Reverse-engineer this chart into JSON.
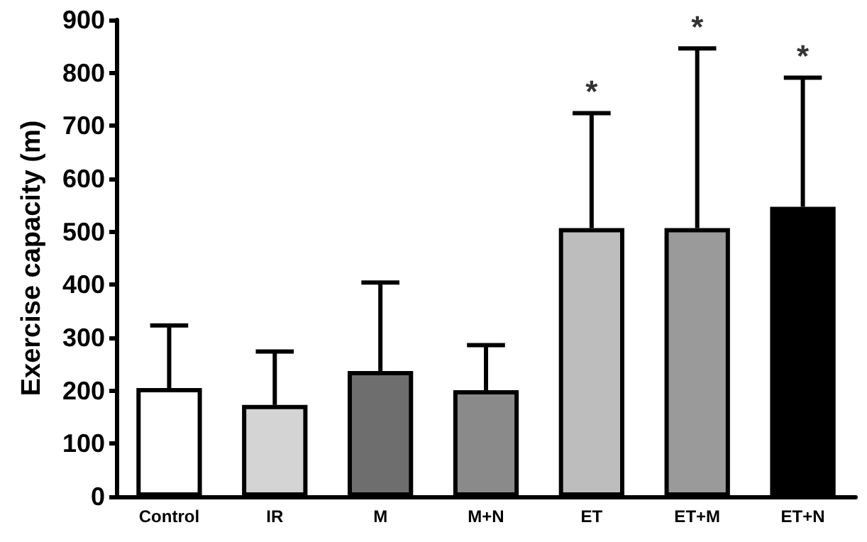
{
  "chart_data": {
    "type": "bar",
    "ylabel": "Exercise capacity (m)",
    "categories": [
      "Control",
      "IR",
      "M",
      "M+N",
      "ET",
      "ET+M",
      "ET+N"
    ],
    "values": [
      205,
      173,
      237,
      201,
      507,
      507,
      547
    ],
    "colors": [
      "#ffffff",
      "#d4d4d4",
      "#6e6e6e",
      "#8a8a8a",
      "#bdbdbd",
      "#9a9a9a",
      "#000000"
    ],
    "errors": [
      [
        205,
        323
      ],
      [
        173,
        274
      ],
      [
        237,
        404
      ],
      [
        201,
        286
      ],
      [
        507,
        724
      ],
      [
        507,
        846
      ],
      [
        547,
        791
      ]
    ],
    "annotations": [
      {
        "text": "*",
        "x": "ET",
        "y": 724
      },
      {
        "text": "*",
        "x": "ET+M",
        "y": 846
      },
      {
        "text": "*",
        "x": "ET+N",
        "y": 791
      }
    ],
    "ylim": [
      0,
      900
    ],
    "yticks": [
      0,
      100,
      200,
      300,
      400,
      500,
      600,
      700,
      800,
      900
    ],
    "grid": false
  }
}
